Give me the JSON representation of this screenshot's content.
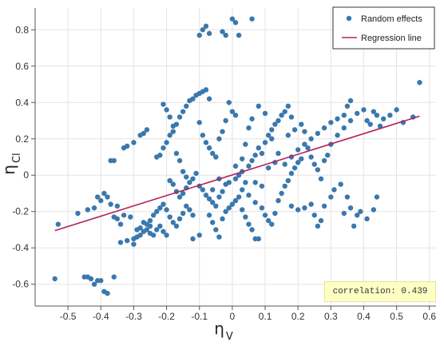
{
  "chart_data": {
    "type": "scatter",
    "xlabel": "η",
    "xlabel_sub": "V",
    "ylabel": "η",
    "ylabel_sub": "Cl",
    "xlim": [
      -0.6,
      0.62
    ],
    "ylim": [
      -0.72,
      0.92
    ],
    "xticks": [
      -0.5,
      -0.4,
      -0.3,
      -0.2,
      -0.1,
      0,
      0.1,
      0.2,
      0.3,
      0.4,
      0.5,
      0.6
    ],
    "xtick_labels": [
      "-0.5",
      "-0.4",
      "-0.3",
      "-0.2",
      "-0.1",
      "0",
      "0.1",
      "0.2",
      "0.3",
      "0.4",
      "0.5",
      "0.6"
    ],
    "yticks": [
      -0.6,
      -0.4,
      -0.2,
      0,
      0.2,
      0.4,
      0.6,
      0.8
    ],
    "ytick_labels": [
      "-0.6",
      "-0.4",
      "-0.2",
      "0",
      "0.2",
      "0.4",
      "0.6",
      "0.8"
    ],
    "grid": true,
    "legend_position": "top-right",
    "series": [
      {
        "name": "Random effects",
        "kind": "points",
        "color": "#3a78ad",
        "points": [
          [
            -0.54,
            -0.57
          ],
          [
            -0.53,
            -0.27
          ],
          [
            -0.47,
            -0.21
          ],
          [
            -0.45,
            -0.56
          ],
          [
            -0.44,
            -0.56
          ],
          [
            -0.43,
            -0.57
          ],
          [
            -0.42,
            -0.6
          ],
          [
            -0.41,
            -0.58
          ],
          [
            -0.4,
            -0.58
          ],
          [
            -0.39,
            -0.64
          ],
          [
            -0.38,
            -0.65
          ],
          [
            -0.36,
            -0.56
          ],
          [
            -0.44,
            -0.19
          ],
          [
            -0.42,
            -0.18
          ],
          [
            -0.41,
            -0.12
          ],
          [
            -0.4,
            -0.14
          ],
          [
            -0.39,
            -0.1
          ],
          [
            -0.38,
            -0.12
          ],
          [
            -0.37,
            -0.16
          ],
          [
            -0.36,
            -0.23
          ],
          [
            -0.35,
            -0.24
          ],
          [
            -0.34,
            -0.27
          ],
          [
            -0.37,
            0.08
          ],
          [
            -0.36,
            0.08
          ],
          [
            -0.33,
            0.15
          ],
          [
            -0.32,
            0.16
          ],
          [
            -0.3,
            0.18
          ],
          [
            -0.28,
            0.22
          ],
          [
            -0.27,
            0.23
          ],
          [
            -0.26,
            0.25
          ],
          [
            -0.34,
            -0.37
          ],
          [
            -0.32,
            -0.36
          ],
          [
            -0.3,
            -0.35
          ],
          [
            -0.29,
            -0.34
          ],
          [
            -0.28,
            -0.33
          ],
          [
            -0.27,
            -0.31
          ],
          [
            -0.26,
            -0.3
          ],
          [
            -0.25,
            -0.32
          ],
          [
            -0.24,
            -0.33
          ],
          [
            -0.23,
            -0.3
          ],
          [
            -0.22,
            -0.28
          ],
          [
            -0.21,
            -0.31
          ],
          [
            -0.2,
            -0.33
          ],
          [
            -0.3,
            -0.38
          ],
          [
            -0.29,
            -0.3
          ],
          [
            -0.28,
            -0.29
          ],
          [
            -0.27,
            -0.26
          ],
          [
            -0.26,
            -0.27
          ],
          [
            -0.25,
            -0.25
          ],
          [
            -0.24,
            -0.22
          ],
          [
            -0.23,
            -0.2
          ],
          [
            -0.22,
            -0.18
          ],
          [
            -0.21,
            -0.16
          ],
          [
            -0.2,
            -0.19
          ],
          [
            -0.19,
            -0.23
          ],
          [
            -0.18,
            -0.26
          ],
          [
            -0.17,
            -0.28
          ],
          [
            -0.16,
            -0.24
          ],
          [
            -0.15,
            -0.21
          ],
          [
            -0.14,
            -0.17
          ],
          [
            -0.13,
            -0.19
          ],
          [
            -0.12,
            -0.22
          ],
          [
            -0.23,
            0.1
          ],
          [
            -0.22,
            0.11
          ],
          [
            -0.21,
            0.15
          ],
          [
            -0.2,
            0.18
          ],
          [
            -0.19,
            0.22
          ],
          [
            -0.18,
            0.24
          ],
          [
            -0.17,
            0.28
          ],
          [
            -0.16,
            0.32
          ],
          [
            -0.15,
            0.35
          ],
          [
            -0.14,
            0.38
          ],
          [
            -0.13,
            0.41
          ],
          [
            -0.12,
            0.42
          ],
          [
            -0.11,
            0.44
          ],
          [
            -0.1,
            0.45
          ],
          [
            -0.09,
            0.46
          ],
          [
            -0.08,
            0.47
          ],
          [
            -0.07,
            0.42
          ],
          [
            -0.21,
            0.39
          ],
          [
            -0.2,
            0.36
          ],
          [
            -0.19,
            0.32
          ],
          [
            -0.18,
            0.27
          ],
          [
            -0.17,
            0.12
          ],
          [
            -0.16,
            0.08
          ],
          [
            -0.15,
            0.02
          ],
          [
            -0.14,
            -0.01
          ],
          [
            -0.19,
            -0.03
          ],
          [
            -0.18,
            -0.05
          ],
          [
            -0.17,
            -0.09
          ],
          [
            -0.16,
            -0.12
          ],
          [
            -0.15,
            -0.1
          ],
          [
            -0.14,
            -0.07
          ],
          [
            -0.13,
            -0.04
          ],
          [
            -0.12,
            -0.02
          ],
          [
            -0.11,
            0.01
          ],
          [
            -0.1,
            -0.06
          ],
          [
            -0.09,
            -0.08
          ],
          [
            -0.08,
            -0.11
          ],
          [
            -0.07,
            -0.13
          ],
          [
            -0.06,
            -0.15
          ],
          [
            -0.05,
            -0.17
          ],
          [
            -0.04,
            -0.12
          ],
          [
            -0.03,
            -0.09
          ],
          [
            -0.02,
            -0.05
          ],
          [
            -0.1,
            0.29
          ],
          [
            -0.09,
            0.22
          ],
          [
            -0.08,
            0.18
          ],
          [
            -0.07,
            0.15
          ],
          [
            -0.06,
            0.12
          ],
          [
            -0.05,
            0.1
          ],
          [
            -0.04,
            0.2
          ],
          [
            -0.03,
            0.24
          ],
          [
            -0.02,
            0.3
          ],
          [
            -0.01,
            0.4
          ],
          [
            0.0,
            0.35
          ],
          [
            0.01,
            0.33
          ],
          [
            -0.07,
            -0.22
          ],
          [
            -0.06,
            -0.26
          ],
          [
            -0.05,
            -0.3
          ],
          [
            -0.04,
            -0.34
          ],
          [
            -0.03,
            -0.24
          ],
          [
            -0.02,
            -0.2
          ],
          [
            -0.01,
            -0.18
          ],
          [
            0.0,
            -0.16
          ],
          [
            0.01,
            -0.14
          ],
          [
            0.02,
            -0.12
          ],
          [
            0.03,
            -0.19
          ],
          [
            0.04,
            -0.23
          ],
          [
            0.05,
            -0.27
          ],
          [
            0.06,
            -0.3
          ],
          [
            0.07,
            -0.35
          ],
          [
            0.08,
            -0.35
          ],
          [
            -0.1,
            0.77
          ],
          [
            -0.09,
            0.8
          ],
          [
            -0.08,
            0.82
          ],
          [
            -0.07,
            0.78
          ],
          [
            -0.03,
            0.79
          ],
          [
            -0.02,
            0.77
          ],
          [
            0.0,
            0.86
          ],
          [
            0.01,
            0.84
          ],
          [
            0.02,
            0.77
          ],
          [
            0.06,
            0.86
          ],
          [
            0.01,
            -0.02
          ],
          [
            0.02,
            0.0
          ],
          [
            0.03,
            0.02
          ],
          [
            0.04,
            -0.04
          ],
          [
            0.05,
            0.05
          ],
          [
            0.06,
            0.08
          ],
          [
            0.07,
            0.11
          ],
          [
            0.08,
            0.15
          ],
          [
            0.09,
            0.12
          ],
          [
            0.1,
            0.18
          ],
          [
            0.11,
            0.22
          ],
          [
            0.12,
            0.25
          ],
          [
            0.13,
            0.28
          ],
          [
            0.14,
            0.3
          ],
          [
            0.15,
            0.33
          ],
          [
            0.16,
            0.35
          ],
          [
            0.17,
            0.38
          ],
          [
            0.18,
            0.32
          ],
          [
            0.03,
            -0.08
          ],
          [
            0.05,
            -0.11
          ],
          [
            0.07,
            -0.15
          ],
          [
            0.09,
            -0.18
          ],
          [
            0.1,
            -0.22
          ],
          [
            0.11,
            -0.25
          ],
          [
            0.12,
            -0.27
          ],
          [
            0.13,
            -0.21
          ],
          [
            0.14,
            -0.14
          ],
          [
            0.15,
            -0.1
          ],
          [
            0.16,
            -0.06
          ],
          [
            0.17,
            -0.03
          ],
          [
            0.18,
            0.01
          ],
          [
            0.19,
            0.04
          ],
          [
            0.2,
            0.07
          ],
          [
            0.21,
            0.09
          ],
          [
            0.05,
            0.26
          ],
          [
            0.06,
            0.31
          ],
          [
            0.08,
            0.38
          ],
          [
            0.1,
            0.34
          ],
          [
            0.12,
            0.2
          ],
          [
            0.14,
            0.12
          ],
          [
            0.16,
            0.06
          ],
          [
            0.18,
            0.1
          ],
          [
            0.2,
            0.14
          ],
          [
            0.22,
            0.17
          ],
          [
            0.24,
            0.2
          ],
          [
            0.26,
            0.23
          ],
          [
            0.28,
            0.26
          ],
          [
            0.3,
            0.29
          ],
          [
            0.32,
            0.31
          ],
          [
            0.34,
            0.33
          ],
          [
            0.35,
            0.38
          ],
          [
            0.36,
            0.41
          ],
          [
            0.17,
            0.22
          ],
          [
            0.19,
            0.25
          ],
          [
            0.21,
            0.28
          ],
          [
            0.22,
            0.24
          ],
          [
            0.23,
            0.15
          ],
          [
            0.24,
            0.1
          ],
          [
            0.25,
            0.06
          ],
          [
            0.26,
            0.03
          ],
          [
            0.27,
            -0.02
          ],
          [
            0.28,
            0.08
          ],
          [
            0.29,
            0.11
          ],
          [
            0.3,
            0.17
          ],
          [
            0.18,
            -0.17
          ],
          [
            0.2,
            -0.19
          ],
          [
            0.22,
            -0.18
          ],
          [
            0.24,
            -0.16
          ],
          [
            0.25,
            -0.22
          ],
          [
            0.26,
            -0.28
          ],
          [
            0.27,
            -0.25
          ],
          [
            0.28,
            -0.17
          ],
          [
            0.3,
            -0.12
          ],
          [
            0.31,
            -0.08
          ],
          [
            0.33,
            -0.05
          ],
          [
            0.35,
            -0.12
          ],
          [
            0.37,
            -0.28
          ],
          [
            0.38,
            -0.22
          ],
          [
            0.32,
            0.22
          ],
          [
            0.34,
            0.26
          ],
          [
            0.36,
            0.3
          ],
          [
            0.38,
            0.34
          ],
          [
            0.4,
            0.36
          ],
          [
            0.41,
            0.3
          ],
          [
            0.42,
            0.28
          ],
          [
            0.43,
            0.35
          ],
          [
            0.44,
            0.33
          ],
          [
            0.45,
            0.27
          ],
          [
            0.46,
            0.31
          ],
          [
            0.48,
            0.33
          ],
          [
            0.5,
            0.36
          ],
          [
            0.52,
            0.29
          ],
          [
            0.55,
            0.32
          ],
          [
            0.57,
            0.51
          ],
          [
            0.34,
            -0.21
          ],
          [
            0.36,
            -0.18
          ],
          [
            0.39,
            -0.2
          ],
          [
            0.41,
            -0.24
          ],
          [
            0.43,
            -0.19
          ],
          [
            0.44,
            -0.12
          ],
          [
            -0.35,
            -0.17
          ],
          [
            -0.33,
            -0.22
          ],
          [
            -0.31,
            -0.23
          ],
          [
            -0.25,
            -0.28
          ],
          [
            -0.12,
            -0.35
          ],
          [
            -0.1,
            -0.33
          ],
          [
            -0.06,
            -0.08
          ],
          [
            -0.04,
            -0.02
          ],
          [
            -0.01,
            -0.04
          ],
          [
            0.01,
            0.05
          ],
          [
            0.03,
            0.09
          ],
          [
            0.04,
            0.17
          ],
          [
            0.07,
            -0.04
          ],
          [
            0.09,
            -0.06
          ],
          [
            0.11,
            0.04
          ],
          [
            0.13,
            0.07
          ]
        ]
      },
      {
        "name": "Regression line",
        "kind": "line",
        "color": "#b3225e",
        "from": [
          -0.54,
          -0.305
        ],
        "to": [
          0.57,
          0.325
        ]
      }
    ],
    "annotation": "correlation: 0.439"
  }
}
